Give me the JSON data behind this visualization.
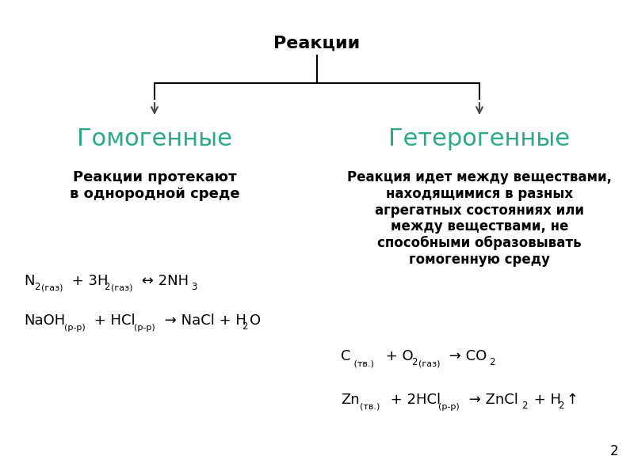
{
  "bg_color": "#ffffff",
  "title": "Реакции",
  "header_color": "#2aaa8a",
  "left_header": "Гомогенные",
  "right_header": "Гетерогенные",
  "page_num": "2",
  "line_color": "#000000",
  "arrow_color": "#4a4a4a"
}
